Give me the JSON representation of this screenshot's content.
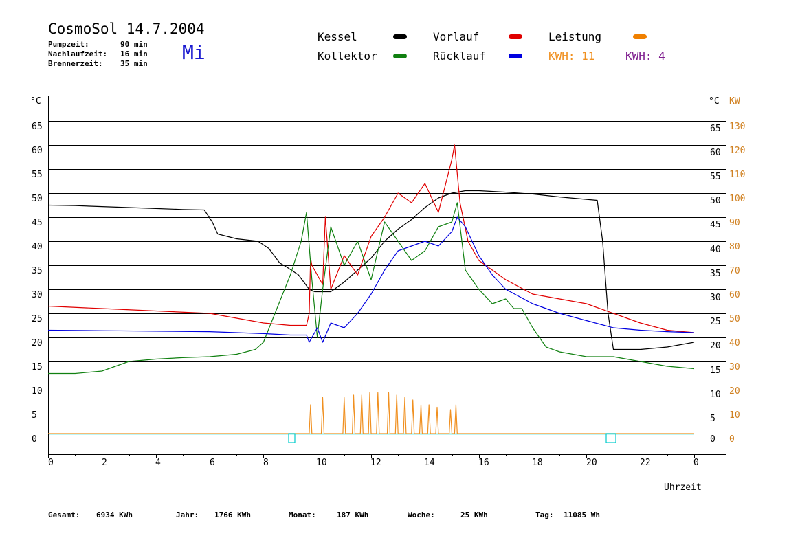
{
  "header": {
    "title": "CosmoSol 14.7.2004",
    "weekday": "Mi",
    "params": [
      {
        "label": "Pumpzeit:",
        "value": "90 min"
      },
      {
        "label": "Nachlaufzeit:",
        "value": "16 min"
      },
      {
        "label": "Brennerzeit:",
        "value": "35 min"
      }
    ]
  },
  "legend": {
    "kessel": {
      "label": "Kessel",
      "color": "#000000"
    },
    "vorlauf": {
      "label": "Vorlauf",
      "color": "#e00000"
    },
    "leistung": {
      "label": "Leistung",
      "color": "#f08000"
    },
    "kollektor": {
      "label": "Kollektor",
      "color": "#108010"
    },
    "ruecklauf": {
      "label": "Rücklauf",
      "color": "#0000e0"
    },
    "kwh_orange": "KWH: 11",
    "kwh_purple": "KWH: 4"
  },
  "colors": {
    "kwh_orange": "#f09020",
    "kwh_purple": "#802090",
    "baseline": "#00dddd",
    "grid": "#000000"
  },
  "chart_data": {
    "type": "line",
    "xlabel": "Uhrzeit",
    "x_tick_labels": [
      "0",
      "2",
      "4",
      "6",
      "8",
      "10",
      "12",
      "14",
      "16",
      "18",
      "20",
      "22",
      "0"
    ],
    "xlim": [
      0,
      24
    ],
    "ylim": [
      0,
      65
    ],
    "y2lim": [
      0,
      130
    ],
    "left_unit": "°C",
    "right_unit_c": "°C",
    "right_unit_kw": "KW",
    "y_left_ticks": [
      "0",
      "5",
      "10",
      "15",
      "20",
      "25",
      "30",
      "35",
      "40",
      "45",
      "50",
      "55",
      "60",
      "65"
    ],
    "y_right_c_ticks": [
      "0",
      "5",
      "10",
      "15",
      "20",
      "25",
      "30",
      "35",
      "40",
      "45",
      "50",
      "55",
      "60",
      "65"
    ],
    "y_right_kw_ticks": [
      "0",
      "10",
      "20",
      "30",
      "40",
      "50",
      "60",
      "70",
      "80",
      "90",
      "100",
      "110",
      "120",
      "130"
    ],
    "series": [
      {
        "name": "Kessel",
        "color": "#000000",
        "x": [
          0,
          1,
          2,
          3,
          4,
          5,
          5.8,
          6.1,
          6.3,
          7,
          7.8,
          8.2,
          8.6,
          8.9,
          9.3,
          9.7,
          9.9,
          10.5,
          11,
          11.5,
          12,
          12.5,
          13,
          13.5,
          14,
          14.5,
          15,
          15.5,
          16,
          17,
          18,
          19,
          20,
          20.4,
          20.6,
          20.8,
          21,
          22,
          23,
          24
        ],
        "y": [
          47.5,
          47.4,
          47.2,
          47,
          46.8,
          46.6,
          46.5,
          44,
          41.5,
          40.5,
          40,
          38.5,
          35.5,
          34.5,
          33,
          30,
          29.5,
          29.5,
          31.5,
          34,
          36.5,
          40,
          42.5,
          44.5,
          47,
          49,
          50,
          50.5,
          50.5,
          50.2,
          49.8,
          49.2,
          48.7,
          48.5,
          40,
          25,
          17.5,
          17.5,
          18,
          19
        ]
      },
      {
        "name": "Vorlauf",
        "color": "#e00000",
        "x": [
          0,
          2,
          4,
          6,
          7,
          8,
          9,
          9.6,
          9.7,
          9.75,
          9.8,
          10.2,
          10.3,
          10.5,
          11,
          11.5,
          12,
          12.5,
          13,
          13.5,
          14,
          14.5,
          15,
          15.1,
          15.3,
          15.6,
          16,
          16.5,
          17,
          18,
          19,
          20,
          21,
          22,
          23,
          24
        ],
        "y": [
          26.5,
          26,
          25.5,
          25,
          24,
          23,
          22.5,
          22.5,
          25,
          36.5,
          35,
          31,
          45,
          30,
          37,
          33,
          41,
          45,
          50,
          48,
          52,
          46,
          57,
          60,
          48,
          40,
          36,
          34,
          32,
          29,
          28,
          27,
          25,
          23,
          21.5,
          21
        ]
      },
      {
        "name": "Kollektor",
        "color": "#108010",
        "x": [
          0,
          1,
          2,
          3,
          4,
          5,
          6,
          7,
          7.7,
          8,
          8.5,
          9,
          9.4,
          9.6,
          9.8,
          10,
          10.2,
          10.5,
          11,
          11.5,
          12,
          12.5,
          13,
          13.5,
          14,
          14.5,
          15,
          15.2,
          15.5,
          16,
          16.5,
          17,
          17.3,
          17.6,
          18,
          18.5,
          19,
          20,
          21,
          22,
          23,
          24
        ],
        "y": [
          12.5,
          12.5,
          13,
          15,
          15.5,
          15.8,
          16,
          16.5,
          17.5,
          19,
          26,
          33,
          40,
          46,
          32,
          20,
          30,
          43,
          35,
          40,
          32,
          44,
          40,
          36,
          38,
          43,
          44,
          48,
          34,
          30,
          27,
          28,
          26,
          26,
          22,
          18,
          17,
          16,
          16,
          15,
          14,
          13.5
        ]
      },
      {
        "name": "Rücklauf",
        "color": "#0000e0",
        "x": [
          0,
          2,
          4,
          6,
          7,
          8,
          9,
          9.6,
          9.7,
          10,
          10.2,
          10.5,
          11,
          11.5,
          12,
          12.5,
          13,
          13.5,
          14,
          14.5,
          15,
          15.2,
          15.5,
          16,
          16.5,
          17,
          18,
          19,
          20,
          21,
          22,
          23,
          24
        ],
        "y": [
          21.5,
          21.4,
          21.3,
          21.2,
          21,
          20.8,
          20.5,
          20.5,
          19,
          22,
          19,
          23,
          22,
          25,
          29,
          34,
          38,
          39,
          40,
          39,
          42,
          45,
          43,
          37,
          33,
          30,
          27,
          25,
          23.5,
          22,
          21.5,
          21.2,
          21
        ]
      },
      {
        "name": "Leistung",
        "axis": "right",
        "x": [
          0,
          9.7,
          9.75,
          9.8,
          10.15,
          10.2,
          10.25,
          10.95,
          11,
          11.05,
          11.3,
          11.35,
          11.4,
          11.6,
          11.65,
          11.7,
          11.9,
          11.95,
          12,
          12.2,
          12.25,
          12.3,
          12.6,
          12.65,
          12.7,
          12.9,
          12.95,
          13,
          13.2,
          13.25,
          13.3,
          13.5,
          13.55,
          13.6,
          13.8,
          13.85,
          13.9,
          14.1,
          14.15,
          14.2,
          14.4,
          14.45,
          14.5,
          14.9,
          14.95,
          15,
          15.1,
          15.15,
          15.2,
          24
        ],
        "y": [
          0,
          0,
          12,
          0,
          0,
          15,
          0,
          0,
          15,
          0,
          0,
          16,
          0,
          0,
          16,
          0,
          0,
          17,
          0,
          0,
          17,
          0,
          0,
          17,
          0,
          0,
          16,
          0,
          0,
          15,
          0,
          0,
          14,
          0,
          0,
          12,
          0,
          0,
          12,
          0,
          0,
          11,
          0,
          0,
          10,
          0,
          0,
          12,
          0,
          0
        ]
      }
    ]
  },
  "footer": [
    {
      "label": "Gesamt:",
      "value": "6934 KWh"
    },
    {
      "label": "Jahr:",
      "value": "1766 KWh"
    },
    {
      "label": "Monat:",
      "value": "187 KWh"
    },
    {
      "label": "Woche:",
      "value": "25 KWh"
    },
    {
      "label": "Tag:",
      "value": "11085 Wh"
    }
  ]
}
